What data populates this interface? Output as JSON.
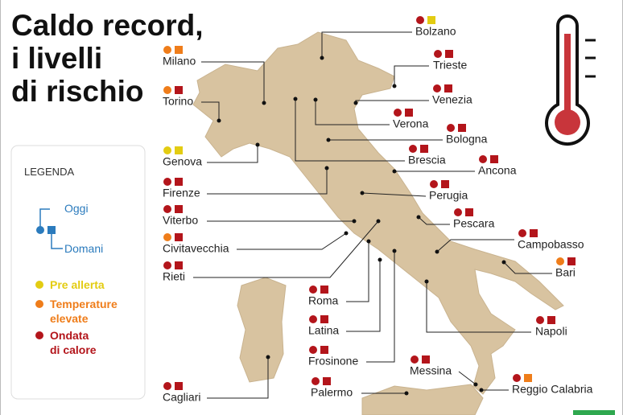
{
  "title": [
    "Caldo record,",
    "i livelli",
    "di rischio"
  ],
  "legend": {
    "title": "LEGENDA",
    "today": "Oggi",
    "tomorrow": "Domani",
    "levels": [
      {
        "label": [
          "Pre allerta"
        ],
        "color": "#e3cc12"
      },
      {
        "label": [
          "Temperature",
          "elevate"
        ],
        "color": "#ef7d1a"
      },
      {
        "label": [
          "Ondata",
          "di calore"
        ],
        "color": "#b3151b"
      }
    ]
  },
  "cities": [
    {
      "name": "Bolzano",
      "today": "#b3151b",
      "tomorrow": "#e3cc12"
    },
    {
      "name": "Milano",
      "today": "#ef7d1a",
      "tomorrow": "#ef7d1a"
    },
    {
      "name": "Trieste",
      "today": "#b3151b",
      "tomorrow": "#b3151b"
    },
    {
      "name": "Torino",
      "today": "#ef7d1a",
      "tomorrow": "#b3151b"
    },
    {
      "name": "Venezia",
      "today": "#b3151b",
      "tomorrow": "#b3151b"
    },
    {
      "name": "Verona",
      "today": "#b3151b",
      "tomorrow": "#b3151b"
    },
    {
      "name": "Bologna",
      "today": "#b3151b",
      "tomorrow": "#b3151b"
    },
    {
      "name": "Genova",
      "today": "#e3cc12",
      "tomorrow": "#e3cc12"
    },
    {
      "name": "Brescia",
      "today": "#b3151b",
      "tomorrow": "#b3151b"
    },
    {
      "name": "Ancona",
      "today": "#b3151b",
      "tomorrow": "#b3151b"
    },
    {
      "name": "Firenze",
      "today": "#b3151b",
      "tomorrow": "#b3151b"
    },
    {
      "name": "Perugia",
      "today": "#b3151b",
      "tomorrow": "#b3151b"
    },
    {
      "name": "Viterbo",
      "today": "#b3151b",
      "tomorrow": "#b3151b"
    },
    {
      "name": "Pescara",
      "today": "#b3151b",
      "tomorrow": "#b3151b"
    },
    {
      "name": "Civitavecchia",
      "today": "#ef7d1a",
      "tomorrow": "#b3151b"
    },
    {
      "name": "Campobasso",
      "today": "#b3151b",
      "tomorrow": "#b3151b"
    },
    {
      "name": "Rieti",
      "today": "#b3151b",
      "tomorrow": "#b3151b"
    },
    {
      "name": "Bari",
      "today": "#ef7d1a",
      "tomorrow": "#b3151b"
    },
    {
      "name": "Roma",
      "today": "#b3151b",
      "tomorrow": "#b3151b"
    },
    {
      "name": "Napoli",
      "today": "#b3151b",
      "tomorrow": "#b3151b"
    },
    {
      "name": "Latina",
      "today": "#b3151b",
      "tomorrow": "#b3151b"
    },
    {
      "name": "Frosinone",
      "today": "#b3151b",
      "tomorrow": "#b3151b"
    },
    {
      "name": "Messina",
      "today": "#b3151b",
      "tomorrow": "#b3151b"
    },
    {
      "name": "Reggio Calabria",
      "today": "#b3151b",
      "tomorrow": "#ef7d1a"
    },
    {
      "name": "Cagliari",
      "today": "#b3151b",
      "tomorrow": "#b3151b"
    },
    {
      "name": "Palermo",
      "today": "#b3151b",
      "tomorrow": "#b3151b"
    }
  ]
}
